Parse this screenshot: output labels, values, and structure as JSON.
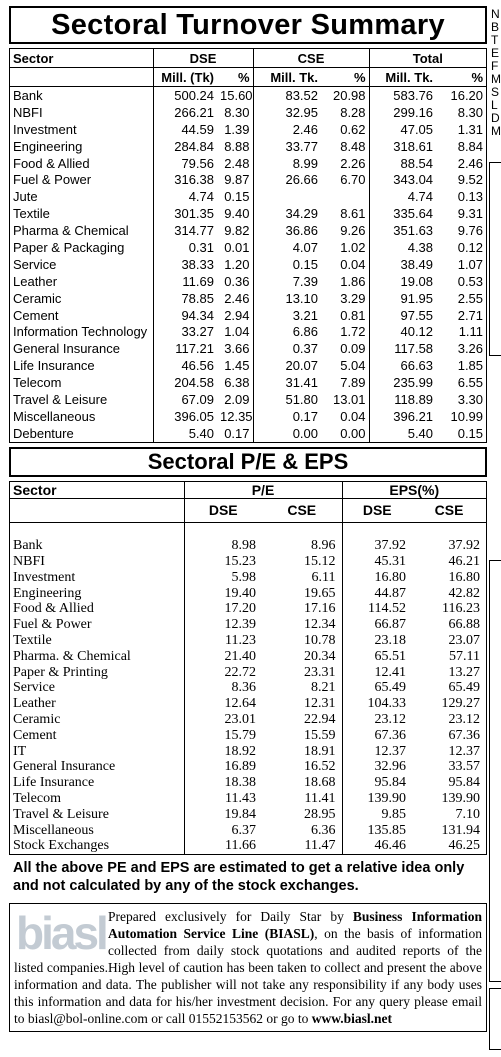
{
  "sectoral_turnover": {
    "title": "Sectoral Turnover Summary",
    "header": {
      "sector": "Sector",
      "dse": "DSE",
      "cse": "CSE",
      "total": "Total",
      "mill_tk_paren": "Mill. (Tk)",
      "pct": "%",
      "mill_tk": "Mill. Tk."
    },
    "rows": [
      [
        "Bank",
        "500.24",
        "15.60",
        "83.52",
        "20.98",
        "583.76",
        "16.20"
      ],
      [
        "NBFI",
        "266.21",
        "8.30",
        "32.95",
        "8.28",
        "299.16",
        "8.30"
      ],
      [
        "Investment",
        "44.59",
        "1.39",
        "2.46",
        "0.62",
        "47.05",
        "1.31"
      ],
      [
        "Engineering",
        "284.84",
        "8.88",
        "33.77",
        "8.48",
        "318.61",
        "8.84"
      ],
      [
        "Food & Allied",
        "79.56",
        "2.48",
        "8.99",
        "2.26",
        "88.54",
        "2.46"
      ],
      [
        "Fuel & Power",
        "316.38",
        "9.87",
        "26.66",
        "6.70",
        "343.04",
        "9.52"
      ],
      [
        "Jute",
        "4.74",
        "0.15",
        "",
        "",
        "4.74",
        "0.13"
      ],
      [
        "Textile",
        "301.35",
        "9.40",
        "34.29",
        "8.61",
        "335.64",
        "9.31"
      ],
      [
        "Pharma & Chemical",
        "314.77",
        "9.82",
        "36.86",
        "9.26",
        "351.63",
        "9.76"
      ],
      [
        "Paper & Packaging",
        "0.31",
        "0.01",
        "4.07",
        "1.02",
        "4.38",
        "0.12"
      ],
      [
        "Service",
        "38.33",
        "1.20",
        "0.15",
        "0.04",
        "38.49",
        "1.07"
      ],
      [
        "Leather",
        "11.69",
        "0.36",
        "7.39",
        "1.86",
        "19.08",
        "0.53"
      ],
      [
        "Ceramic",
        "78.85",
        "2.46",
        "13.10",
        "3.29",
        "91.95",
        "2.55"
      ],
      [
        "Cement",
        "94.34",
        "2.94",
        "3.21",
        "0.81",
        "97.55",
        "2.71"
      ],
      [
        "Information Technology",
        "33.27",
        "1.04",
        "6.86",
        "1.72",
        "40.12",
        "1.11"
      ],
      [
        "General Insurance",
        "117.21",
        "3.66",
        "0.37",
        "0.09",
        "117.58",
        "3.26"
      ],
      [
        "Life Insurance",
        "46.56",
        "1.45",
        "20.07",
        "5.04",
        "66.63",
        "1.85"
      ],
      [
        "Telecom",
        "204.58",
        "6.38",
        "31.41",
        "7.89",
        "235.99",
        "6.55"
      ],
      [
        "Travel & Leisure",
        "67.09",
        "2.09",
        "51.80",
        "13.01",
        "118.89",
        "3.30"
      ],
      [
        "Miscellaneous",
        "396.05",
        "12.35",
        "0.17",
        "0.04",
        "396.21",
        "10.99"
      ],
      [
        "Debenture",
        "5.40",
        "0.17",
        "0.00",
        "0.00",
        "5.40",
        "0.15"
      ]
    ]
  },
  "sectoral_pe_eps": {
    "title": "Sectoral P/E & EPS",
    "header": {
      "sector": "Sector",
      "pe": "P/E",
      "eps": "EPS(%)",
      "dse": "DSE",
      "cse": "CSE"
    },
    "rows": [
      [
        "Bank",
        "8.98",
        "8.96",
        "37.92",
        "37.92"
      ],
      [
        "NBFI",
        "15.23",
        "15.12",
        "45.31",
        "46.21"
      ],
      [
        "Investment",
        "5.98",
        "6.11",
        "16.80",
        "16.80"
      ],
      [
        "Engineering",
        "19.40",
        "19.65",
        "44.87",
        "42.82"
      ],
      [
        "Food & Allied",
        "17.20",
        "17.16",
        "114.52",
        "116.23"
      ],
      [
        "Fuel & Power",
        "12.39",
        "12.34",
        "66.87",
        "66.88"
      ],
      [
        "Textile",
        "11.23",
        "10.78",
        "23.18",
        "23.07"
      ],
      [
        "Pharma. & Chemical",
        "21.40",
        "20.34",
        "65.51",
        "57.11"
      ],
      [
        "Paper & Printing",
        "22.72",
        "23.31",
        "12.41",
        "13.27"
      ],
      [
        "Service",
        "8.36",
        "8.21",
        "65.49",
        "65.49"
      ],
      [
        "Leather",
        "12.64",
        "12.31",
        "104.33",
        "129.27"
      ],
      [
        "Ceramic",
        "23.01",
        "22.94",
        "23.12",
        "23.12"
      ],
      [
        "Cement",
        "15.79",
        "15.59",
        "67.36",
        "67.36"
      ],
      [
        "IT",
        "18.92",
        "18.91",
        "12.37",
        "12.37"
      ],
      [
        "General Insurance",
        "16.89",
        "16.52",
        "32.96",
        "33.57"
      ],
      [
        "Life Insurance",
        "18.38",
        "18.68",
        "95.84",
        "95.84"
      ],
      [
        "Telecom",
        "11.43",
        "11.41",
        "139.90",
        "139.90"
      ],
      [
        "Travel & Leisure",
        "19.84",
        "28.95",
        "9.85",
        "7.10"
      ],
      [
        "Miscellaneous",
        "6.37",
        "6.36",
        "135.85",
        "131.94"
      ],
      [
        "Stock Exchanges",
        "11.66",
        "11.47",
        "46.46",
        "46.25"
      ]
    ]
  },
  "note": "All the above PE and EPS are estimated to get a relative idea only and not calculated by any of the stock exchanges.",
  "biasl": {
    "logo_text": "biasl",
    "prefix": "Prepared exclusively for Daily Star by ",
    "company": "Business Information Automation Service Line (BIASL)",
    "body": ", on the basis of information collected from daily stock quotations and audited reports of the listed companies.High level of caution has been taken to collect and present the above information and data. The publisher will not take any responsibility if any body uses this information and data for his/her investment decision. For any query please email to biasl@bol-online.com or call 01552153562 or go to ",
    "website": "www.biasl.net"
  },
  "margin_letters": [
    "N",
    "B",
    "T",
    "E",
    "F",
    "M",
    "S",
    "L",
    "D",
    "M"
  ]
}
